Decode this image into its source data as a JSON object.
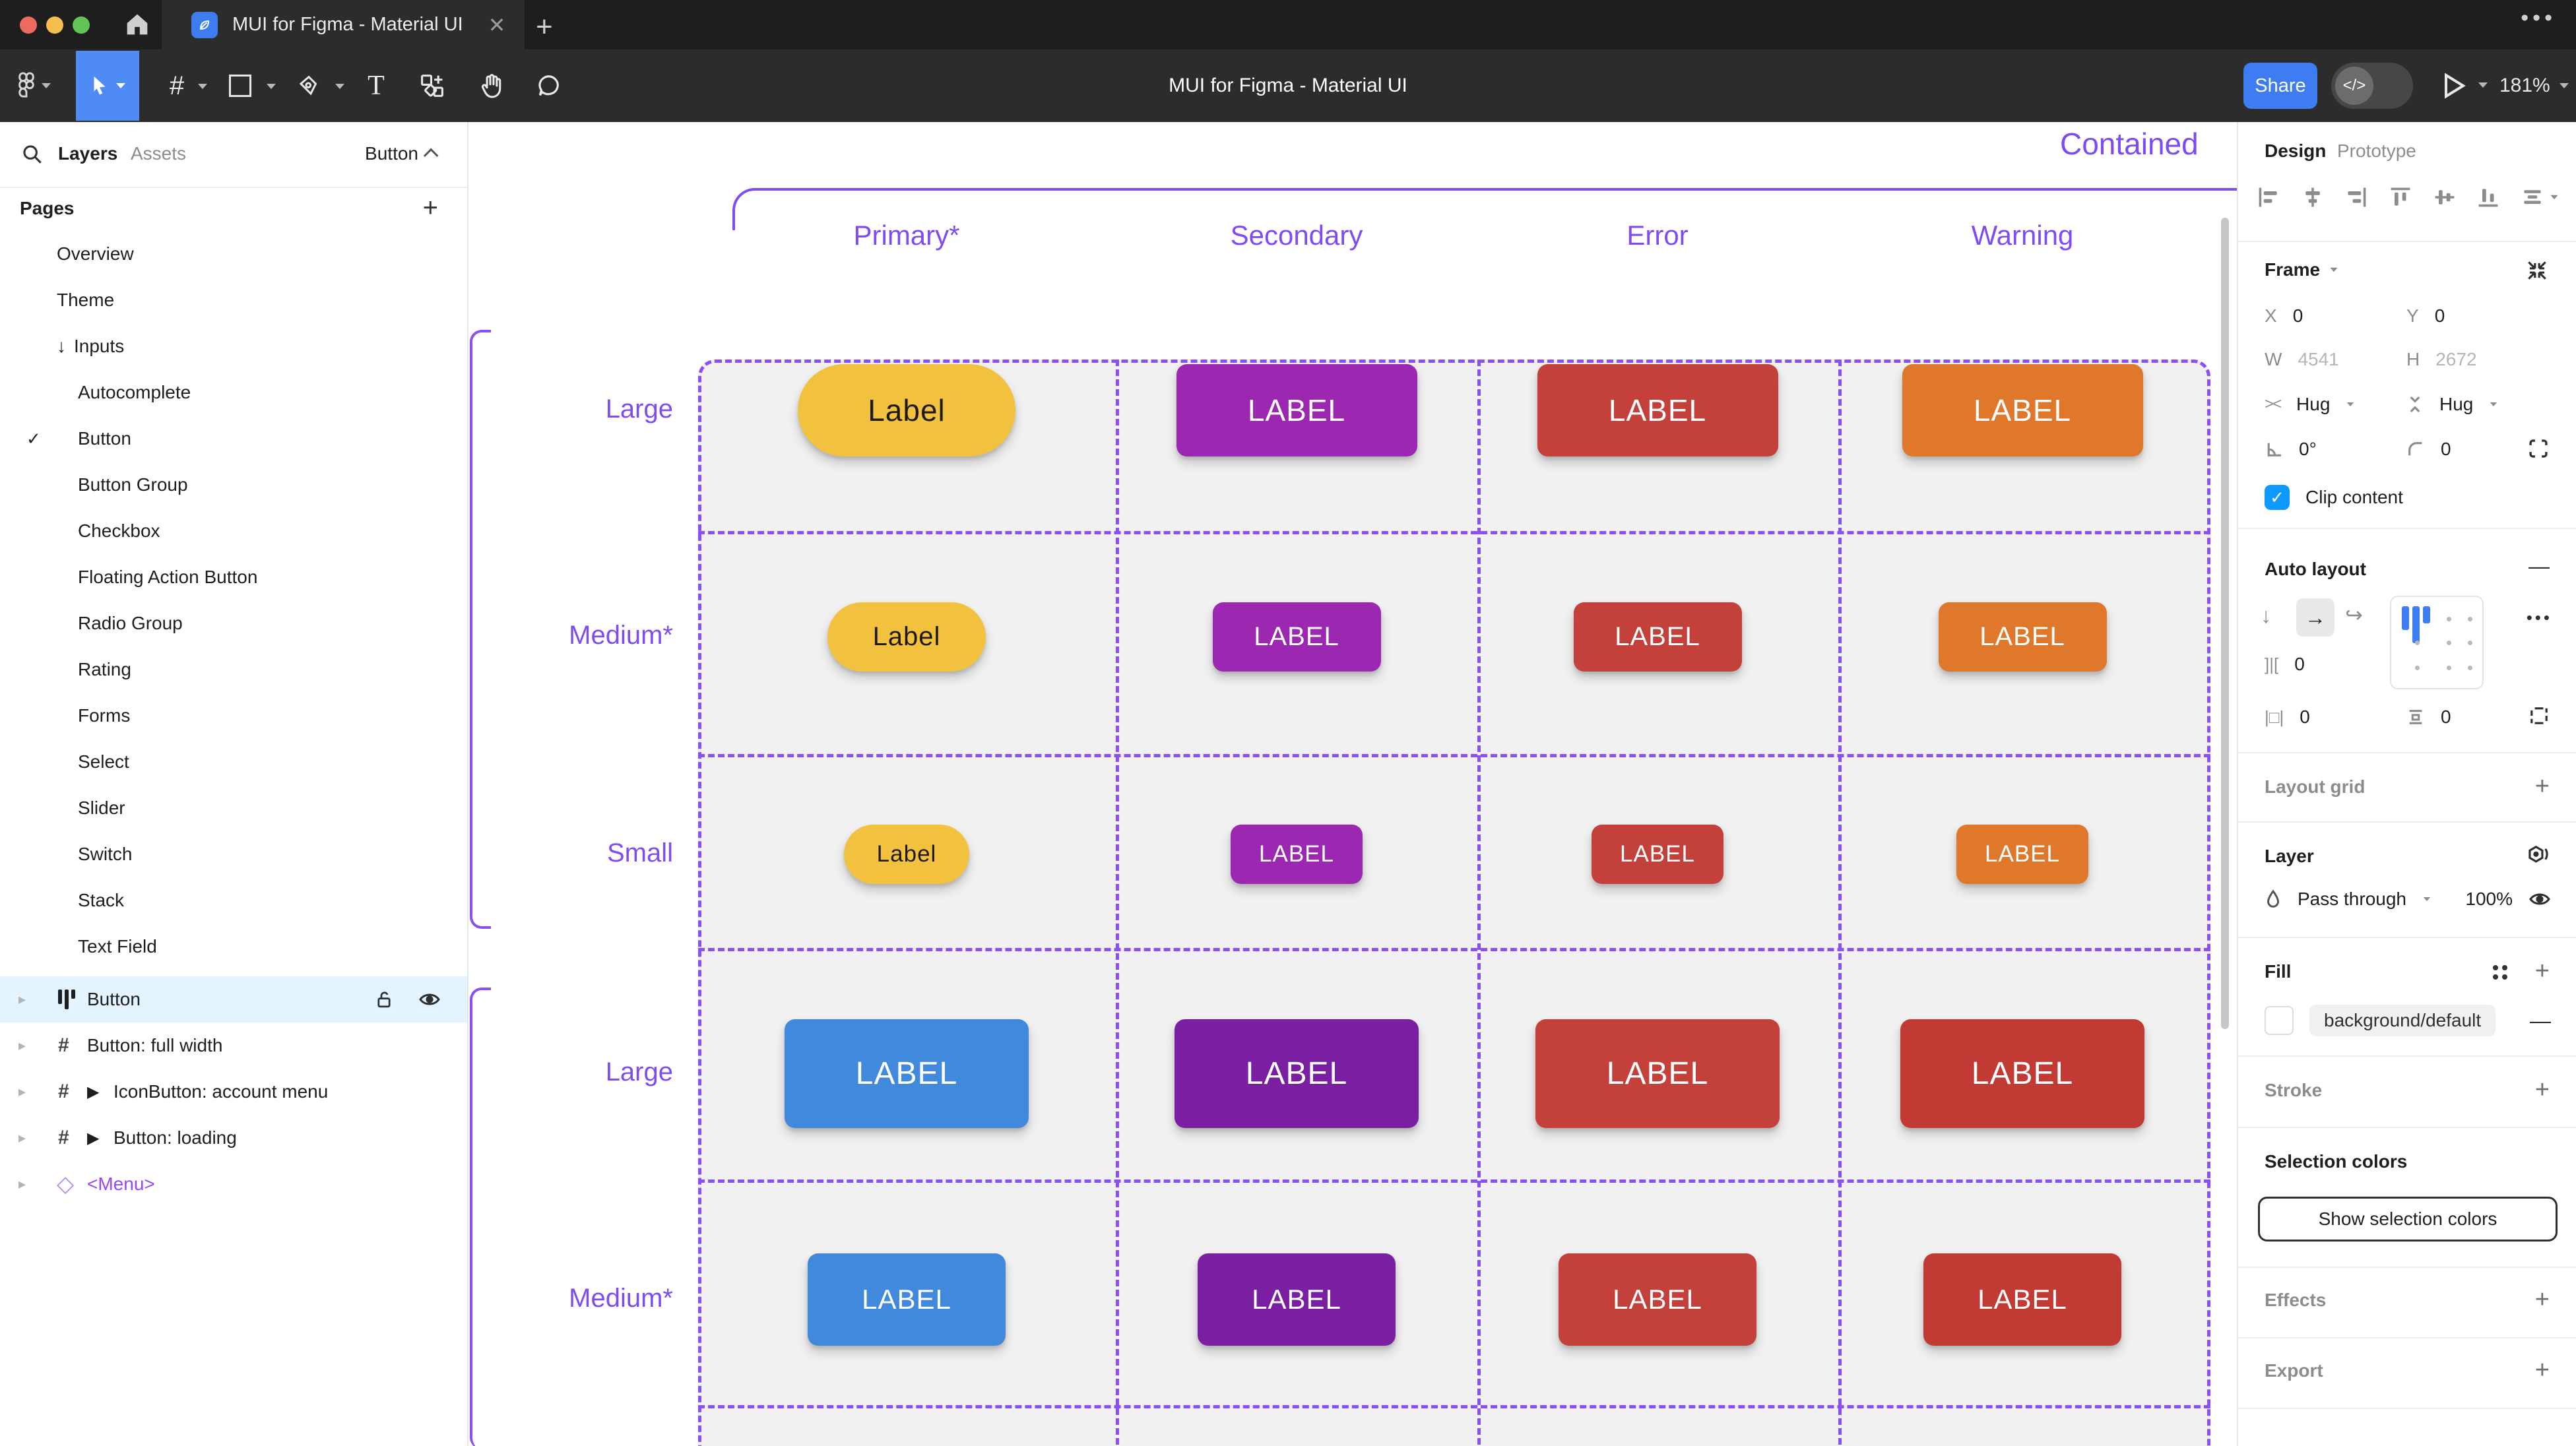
{
  "window": {
    "tab_title": "MUI for Figma - Material UI",
    "doc_title": "MUI for Figma - Material UI",
    "share": "Share",
    "zoom": "181%",
    "more": "•••",
    "close": "✕",
    "new_tab": "+"
  },
  "left_panel": {
    "tab_layers": "Layers",
    "tab_assets": "Assets",
    "page_selector": "Button",
    "pages_title": "Pages",
    "pages_add": "+",
    "pages": [
      {
        "label": "Overview",
        "level": 1
      },
      {
        "label": "Theme",
        "level": 1
      },
      {
        "label": "Inputs",
        "level": 1,
        "prefix": "↓"
      },
      {
        "label": "Autocomplete",
        "level": 2
      },
      {
        "label": "Button",
        "level": 2,
        "check": "✓"
      },
      {
        "label": "Button Group",
        "level": 2
      },
      {
        "label": "Checkbox",
        "level": 2
      },
      {
        "label": "Floating Action Button",
        "level": 2
      },
      {
        "label": "Radio Group",
        "level": 2
      },
      {
        "label": "Rating",
        "level": 2
      },
      {
        "label": "Forms",
        "level": 2
      },
      {
        "label": "Select",
        "level": 2
      },
      {
        "label": "Slider",
        "level": 2
      },
      {
        "label": "Switch",
        "level": 2
      },
      {
        "label": "Stack",
        "level": 2
      },
      {
        "label": "Text Field",
        "level": 2
      }
    ],
    "layers": [
      {
        "label": "Button",
        "icon": "auto-layout",
        "selected": true
      },
      {
        "label": "Button: full width",
        "icon": "frame"
      },
      {
        "label": "IconButton: account menu",
        "icon": "frame",
        "play": "▶"
      },
      {
        "label": "Button: loading",
        "icon": "frame",
        "play": "▶"
      },
      {
        "label": "<Menu>",
        "icon": "diamond",
        "purple": true
      }
    ]
  },
  "canvas": {
    "section_title": "Contained",
    "columns": [
      "Primary*",
      "Secondary",
      "Error",
      "Warning"
    ],
    "purple": "#7e4bf5",
    "rows": [
      {
        "label": "Large",
        "buttons": [
          {
            "text": "Label",
            "bg": "#f2c23e",
            "fg": "#201a0e",
            "pill": true
          },
          {
            "text": "LABEL",
            "bg": "#9c27b0",
            "fg": "#ffffff"
          },
          {
            "text": "LABEL",
            "bg": "#c4413b",
            "fg": "#ffffff"
          },
          {
            "text": "LABEL",
            "bg": "#e0782c",
            "fg": "#ffffff"
          }
        ]
      },
      {
        "label": "Medium*",
        "buttons": [
          {
            "text": "Label",
            "bg": "#f2c23e",
            "fg": "#201a0e",
            "pill": true
          },
          {
            "text": "LABEL",
            "bg": "#9c27b0",
            "fg": "#ffffff"
          },
          {
            "text": "LABEL",
            "bg": "#c4413b",
            "fg": "#ffffff"
          },
          {
            "text": "LABEL",
            "bg": "#e0782c",
            "fg": "#ffffff"
          }
        ]
      },
      {
        "label": "Small",
        "buttons": [
          {
            "text": "Label",
            "bg": "#f2c23e",
            "fg": "#201a0e",
            "pill": true
          },
          {
            "text": "LABEL",
            "bg": "#9c27b0",
            "fg": "#ffffff"
          },
          {
            "text": "LABEL",
            "bg": "#c4413b",
            "fg": "#ffffff"
          },
          {
            "text": "LABEL",
            "bg": "#e0782c",
            "fg": "#ffffff"
          }
        ]
      },
      {
        "label": "Large",
        "buttons": [
          {
            "text": "LABEL",
            "bg": "#4189dc",
            "fg": "#ffffff"
          },
          {
            "text": "LABEL",
            "bg": "#7b1fa2",
            "fg": "#ffffff"
          },
          {
            "text": "LABEL",
            "bg": "#c4413b",
            "fg": "#ffffff"
          },
          {
            "text": "LABEL",
            "bg": "#c23a34",
            "fg": "#ffffff"
          }
        ]
      },
      {
        "label": "Medium*",
        "buttons": [
          {
            "text": "LABEL",
            "bg": "#4189dc",
            "fg": "#ffffff"
          },
          {
            "text": "LABEL",
            "bg": "#7b1fa2",
            "fg": "#ffffff"
          },
          {
            "text": "LABEL",
            "bg": "#c4413b",
            "fg": "#ffffff"
          },
          {
            "text": "LABEL",
            "bg": "#c23a34",
            "fg": "#ffffff"
          }
        ]
      }
    ]
  },
  "right_panel": {
    "tab_design": "Design",
    "tab_prototype": "Prototype",
    "frame": {
      "title": "Frame",
      "x_label": "X",
      "x": "0",
      "y_label": "Y",
      "y": "0",
      "w_label": "W",
      "w": "4541",
      "h_label": "H",
      "h": "2672",
      "hug_h": "Hug",
      "hug_v": "Hug",
      "rotation": "0°",
      "radius": "0",
      "clip_label": "Clip content",
      "clip_check": "✓"
    },
    "auto_layout": {
      "title": "Auto layout",
      "remove": "—",
      "dir_down": "↓",
      "dir_right": "→",
      "dir_wrap": "↩",
      "gap": "0",
      "padding_h": "0",
      "padding_v": "0",
      "more": "•••"
    },
    "layout_grid_title": "Layout grid",
    "layer": {
      "title": "Layer",
      "blend_mode": "Pass through",
      "opacity": "100%"
    },
    "fill": {
      "title": "Fill",
      "value": "background/default",
      "remove": "—"
    },
    "stroke_title": "Stroke",
    "selection_colors": {
      "title": "Selection colors",
      "button": "Show selection colors"
    },
    "effects_title": "Effects",
    "export_title": "Export",
    "add": "+"
  }
}
